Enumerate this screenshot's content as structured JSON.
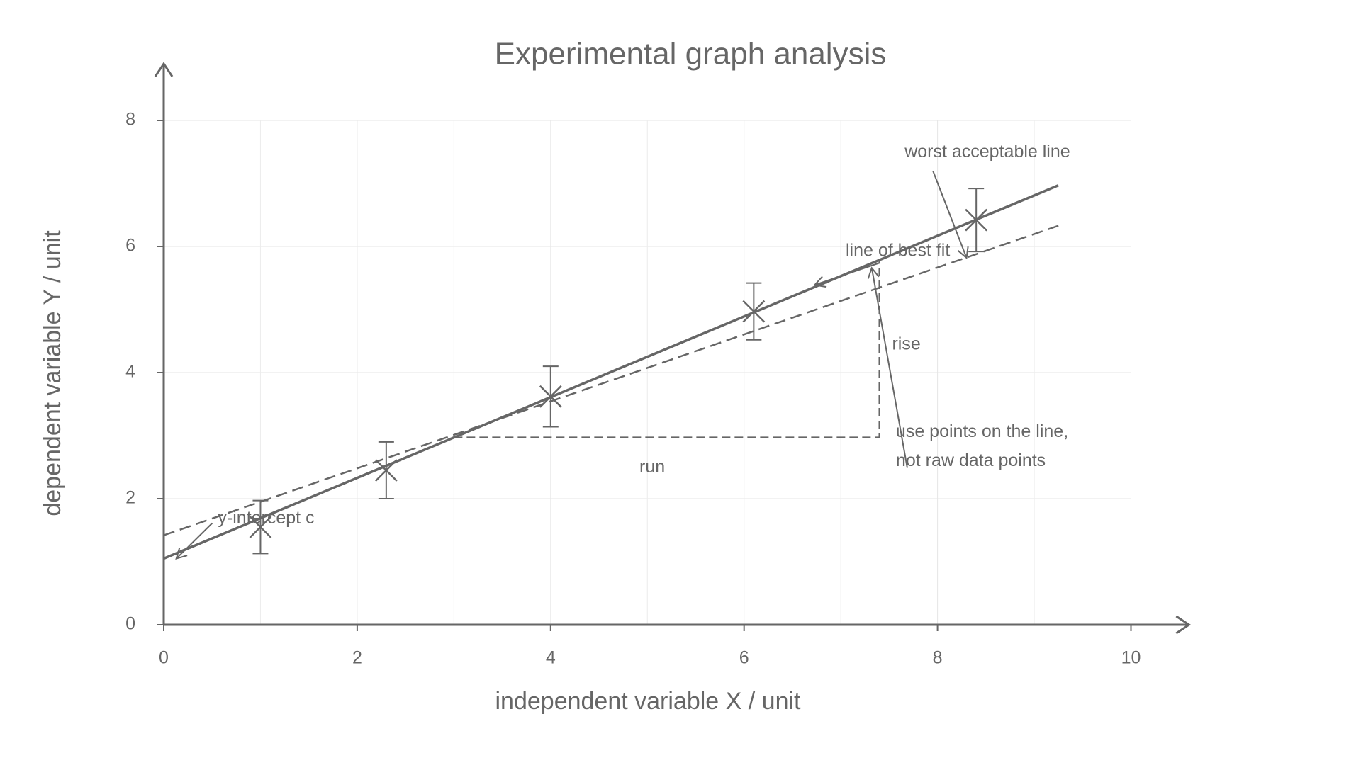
{
  "chart_data": {
    "type": "scatter",
    "title": "Experimental graph analysis",
    "x_label": "independent variable X / unit",
    "y_label": "dependent variable Y / unit",
    "x": [
      1.0,
      2.3,
      4.0,
      6.1,
      8.4
    ],
    "values": [
      1.55,
      2.45,
      3.62,
      4.97,
      6.42
    ],
    "errors": [
      0.42,
      0.45,
      0.48,
      0.45,
      0.5
    ],
    "color": "#666666",
    "fit_line": {
      "x": [
        0,
        9.25
      ],
      "y": [
        1.05,
        6.97
      ]
    },
    "worst_line": {
      "x": [
        0,
        9.25
      ],
      "y": [
        1.42,
        6.33
      ]
    },
    "triangle": {
      "x": [
        3.0,
        7.4,
        7.4
      ],
      "y": [
        2.97,
        2.97,
        5.8
      ]
    },
    "xlim": [
      0,
      10.6
    ],
    "ylim": [
      0,
      8.9
    ],
    "xticks": [
      0,
      2,
      4,
      6,
      8,
      10
    ],
    "xminorticks": [
      1,
      3,
      5,
      7,
      9
    ],
    "yticks": [
      0,
      2,
      4,
      6,
      8
    ],
    "grid": true,
    "annotations": [
      {
        "text": [
          "worst acceptable line"
        ],
        "xytext": [
          7.66,
          7.49
        ],
        "xy": [
          8.3,
          5.82
        ]
      },
      {
        "text": [
          "line of best fit"
        ],
        "xytext": [
          7.05,
          5.92
        ],
        "xy": [
          6.73,
          5.39
        ]
      },
      {
        "text": [
          "rise"
        ],
        "xytext": [
          7.53,
          4.44
        ]
      },
      {
        "text": [
          "run"
        ],
        "xytext": [
          5.05,
          2.49
        ]
      },
      {
        "text": [
          "use points on the line,",
          "not raw data points"
        ],
        "xytext": [
          7.57,
          3.05
        ],
        "xy": [
          7.32,
          5.66
        ]
      },
      {
        "text": [
          "y-intercept c"
        ],
        "xytext": [
          0.56,
          1.68
        ],
        "xy": [
          0.13,
          1.05
        ]
      }
    ]
  }
}
